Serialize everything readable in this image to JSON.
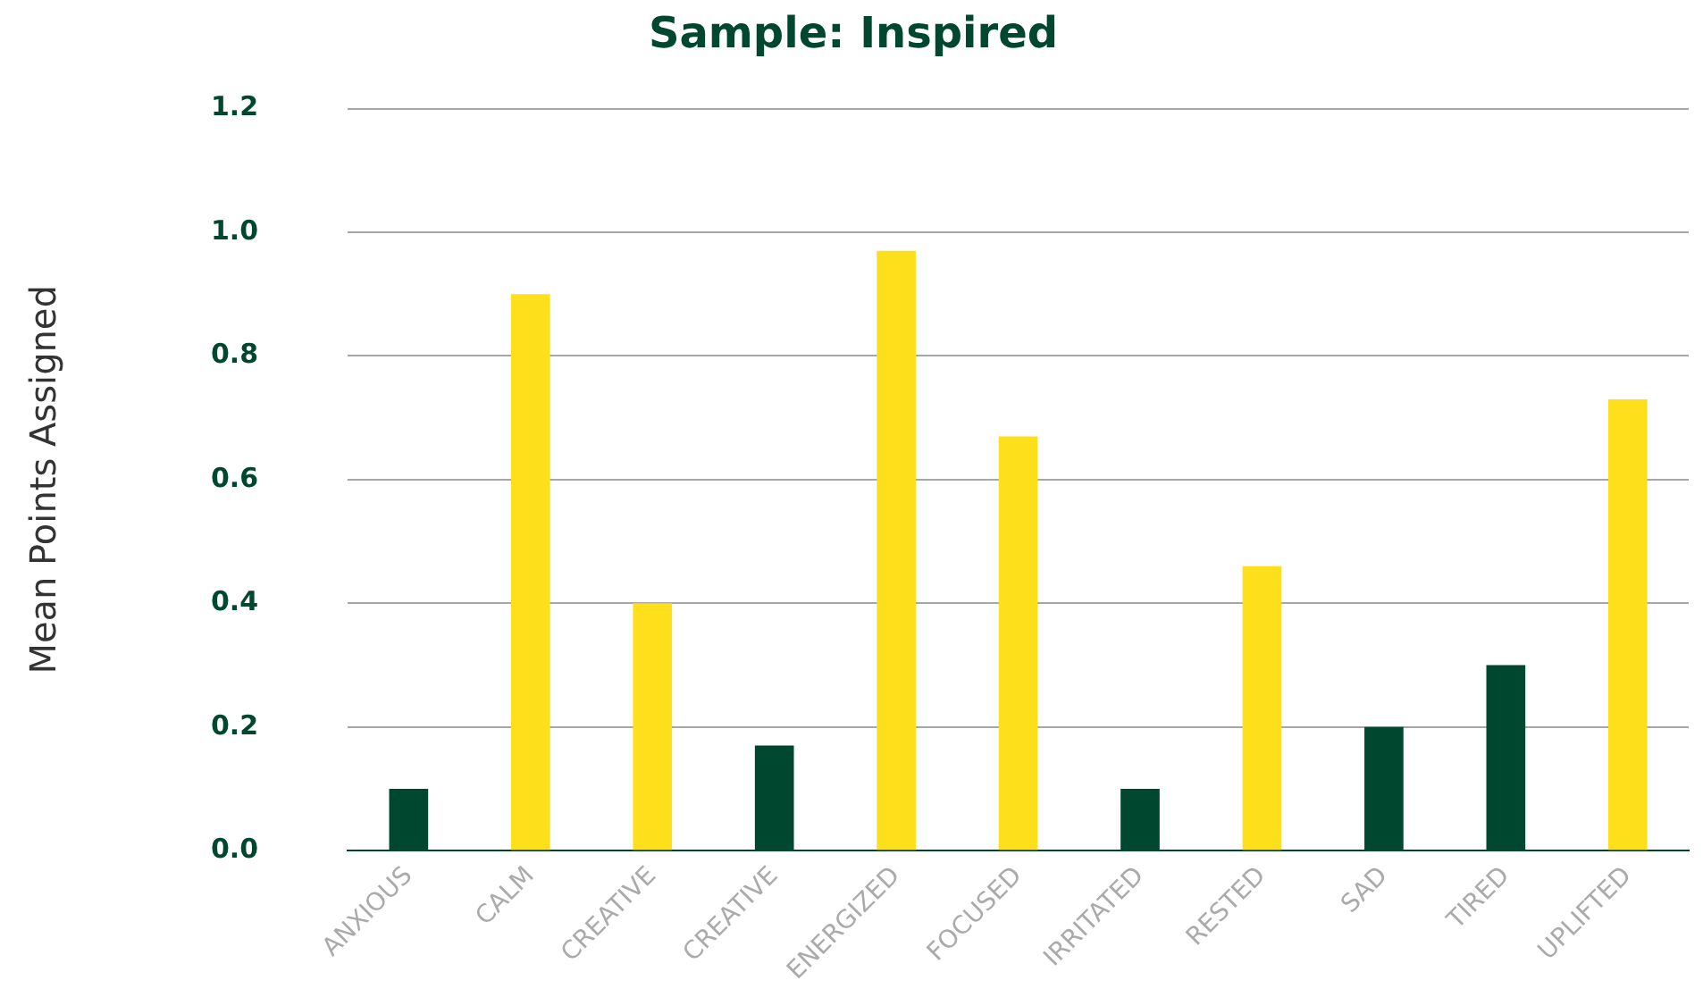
{
  "chart_data": {
    "type": "bar",
    "title": "Sample: Inspired",
    "ylabel": "Mean Points Assigned",
    "categories": [
      "ANXIOUS",
      "CALM",
      "CREATIVE",
      "CREATIVE",
      "ENERGIZED",
      "FOCUSED",
      "IRRITATED",
      "RESTED",
      "SAD",
      "TIRED",
      "UPLIFTED"
    ],
    "values": [
      0.1,
      0.9,
      0.4,
      0.17,
      0.97,
      0.67,
      0.1,
      0.46,
      0.2,
      0.3,
      0.73
    ],
    "colors": [
      "#004730",
      "#fde01b",
      "#fde01b",
      "#004730",
      "#fde01b",
      "#fde01b",
      "#004730",
      "#fde01b",
      "#004730",
      "#004730",
      "#fde01b"
    ],
    "ylim": [
      0,
      1.2
    ],
    "yticks": [
      {
        "value": 0,
        "label": "0.0"
      },
      0.2,
      0.4,
      0.6,
      0.8,
      {
        "value": 1,
        "label": "1.0"
      },
      1.2
    ],
    "grid": "y",
    "legend": false
  }
}
